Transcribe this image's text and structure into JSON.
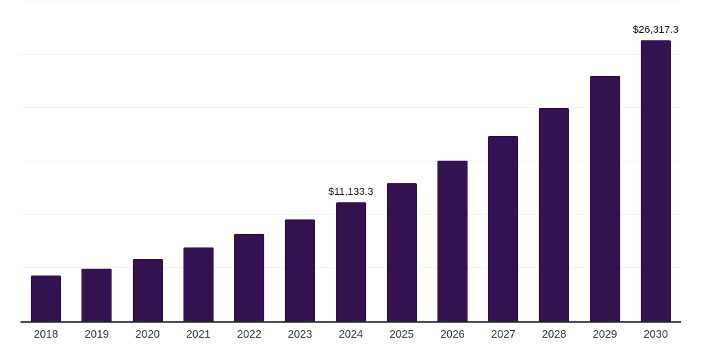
{
  "chart_data": {
    "type": "bar",
    "title": "",
    "xlabel": "",
    "ylabel": "",
    "categories": [
      "2018",
      "2019",
      "2020",
      "2021",
      "2022",
      "2023",
      "2024",
      "2025",
      "2026",
      "2027",
      "2028",
      "2029",
      "2030"
    ],
    "values": [
      4290,
      4960,
      5840,
      6910,
      8180,
      9530,
      11133.3,
      12920,
      15090,
      17390,
      20020,
      23020,
      26317.3
    ],
    "data_labels": [
      {
        "category": "2024",
        "text": "$11,133.3"
      },
      {
        "category": "2030",
        "text": "$26,317.3"
      }
    ],
    "ylim": [
      0,
      30000
    ],
    "gridline_step": 5000,
    "grid": "horizontal-only",
    "legend": "none",
    "y_axis_ticks_visible": false,
    "currency_prefix": "$"
  },
  "colors": {
    "background": "#ffffff",
    "bar": "#34124F",
    "gridline": "#f2f2f4",
    "axis_line": "#262626",
    "tick_label": "#333333",
    "data_label": "#111111"
  }
}
